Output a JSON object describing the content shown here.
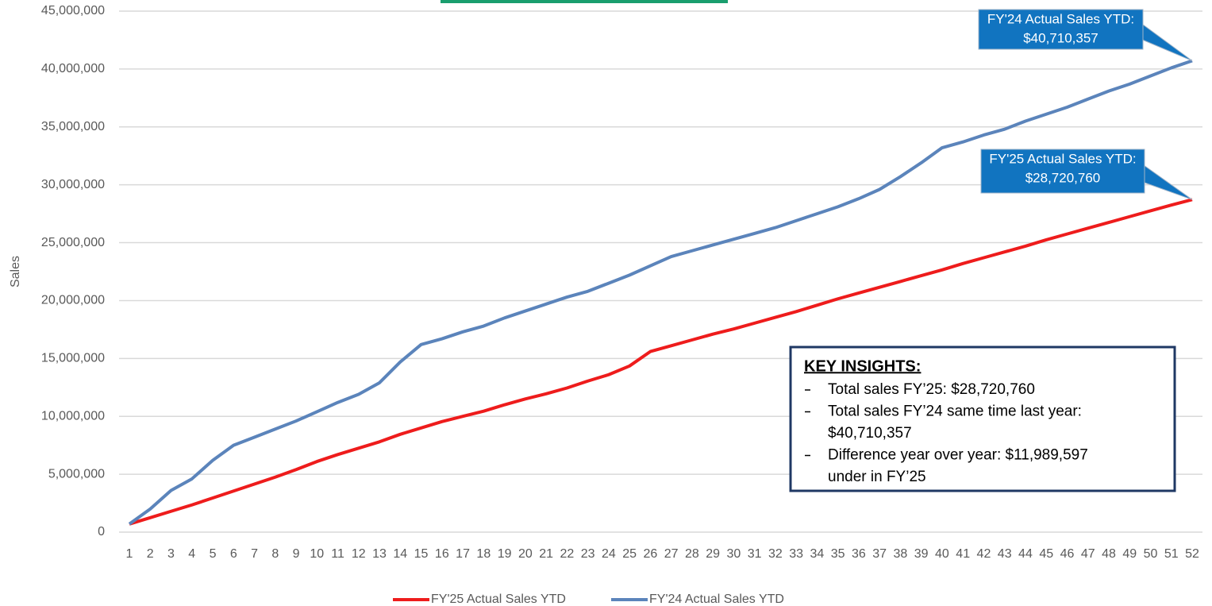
{
  "chart_data": {
    "type": "line",
    "y_label": "Sales",
    "categories": [
      1,
      2,
      3,
      4,
      5,
      6,
      7,
      8,
      9,
      10,
      11,
      12,
      13,
      14,
      15,
      16,
      17,
      18,
      19,
      20,
      21,
      22,
      23,
      24,
      25,
      26,
      27,
      28,
      29,
      30,
      31,
      32,
      33,
      34,
      35,
      36,
      37,
      38,
      39,
      40,
      41,
      42,
      43,
      44,
      45,
      46,
      47,
      48,
      49,
      50,
      51,
      52
    ],
    "series": [
      {
        "name": "FY'25 Actual Sales YTD",
        "color": "#ee1c1c",
        "values": [
          700000,
          1250000,
          1800000,
          2350000,
          2950000,
          3550000,
          4150000,
          4750000,
          5400000,
          6100000,
          6700000,
          7250000,
          7800000,
          8450000,
          9000000,
          9550000,
          10000000,
          10450000,
          11000000,
          11500000,
          11950000,
          12450000,
          13050000,
          13600000,
          14350000,
          15600000,
          16100000,
          16600000,
          17100000,
          17550000,
          18050000,
          18550000,
          19050000,
          19600000,
          20150000,
          20650000,
          21150000,
          21650000,
          22150000,
          22650000,
          23200000,
          23700000,
          24200000,
          24700000,
          25250000,
          25750000,
          26250000,
          26750000,
          27250000,
          27750000,
          28250000,
          28720760
        ]
      },
      {
        "name": "FY'24 Actual Sales YTD",
        "color": "#5b84bb",
        "values": [
          700000,
          2000000,
          3600000,
          4600000,
          6200000,
          7500000,
          8200000,
          8900000,
          9600000,
          10400000,
          11200000,
          11900000,
          12900000,
          14700000,
          16200000,
          16700000,
          17300000,
          17800000,
          18500000,
          19100000,
          19700000,
          20300000,
          20800000,
          21500000,
          22200000,
          23000000,
          23800000,
          24300000,
          24800000,
          25300000,
          25800000,
          26300000,
          26900000,
          27500000,
          28100000,
          28800000,
          29600000,
          30700000,
          31900000,
          33200000,
          33700000,
          34300000,
          34800000,
          35500000,
          36100000,
          36700000,
          37400000,
          38100000,
          38700000,
          39400000,
          40100000,
          40710357
        ]
      }
    ],
    "ylim": [
      0,
      45000000
    ],
    "yticks": [
      0,
      {
        "value": 5000000,
        "label": "5,000,000"
      },
      {
        "value": 10000000,
        "label": "10,000,000"
      },
      {
        "value": 15000000,
        "label": "15,000,000"
      },
      {
        "value": 20000000,
        "label": "20,000,000"
      },
      {
        "value": 25000000,
        "label": "25,000,000"
      },
      {
        "value": 30000000,
        "label": "30,000,000"
      },
      {
        "value": 35000000,
        "label": "35,000,000"
      },
      {
        "value": 40000000,
        "label": "40,000,000"
      },
      {
        "value": 45000000,
        "label": "45,000,000"
      }
    ],
    "grid": true,
    "legend": "bottom",
    "callouts": [
      {
        "series": 1,
        "lines": [
          "FY'24 Actual Sales YTD:",
          "$40,710,357"
        ]
      },
      {
        "series": 0,
        "lines": [
          "FY'25 Actual Sales YTD:",
          "$28,720,760"
        ]
      }
    ],
    "insights": {
      "title": "KEY INSIGHTS:",
      "items": [
        [
          "Total sales FY’25: $28,720,760"
        ],
        [
          "Total sales FY’24 same time last year:",
          "$40,710,357"
        ],
        [
          "Difference year over year: $11,989,597",
          "under in FY’25"
        ]
      ]
    }
  }
}
